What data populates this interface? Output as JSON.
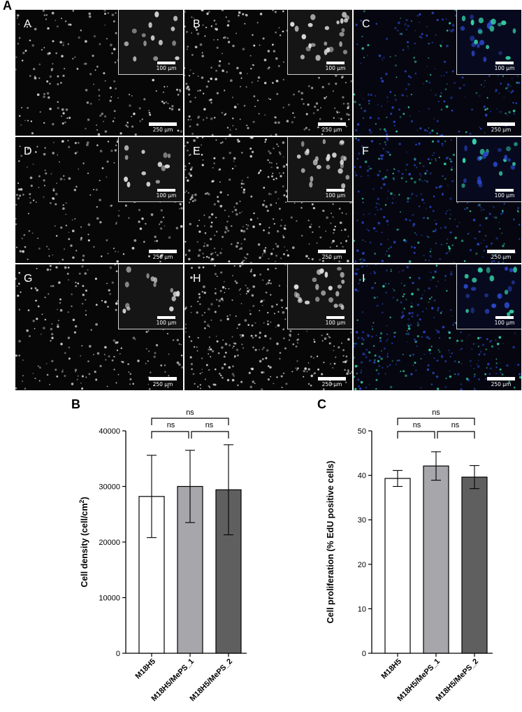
{
  "figure": {
    "panel_labels": {
      "a": "A",
      "b": "B",
      "c": "C"
    },
    "micrographs": [
      {
        "label": "A",
        "channel": "gray",
        "density": "low"
      },
      {
        "label": "B",
        "channel": "gray",
        "density": "medium"
      },
      {
        "label": "C",
        "channel": "merge",
        "density": "medium"
      },
      {
        "label": "D",
        "channel": "gray",
        "density": "low"
      },
      {
        "label": "E",
        "channel": "gray",
        "density": "high"
      },
      {
        "label": "F",
        "channel": "merge",
        "density": "high"
      },
      {
        "label": "G",
        "channel": "gray",
        "density": "low"
      },
      {
        "label": "H",
        "channel": "gray",
        "density": "high"
      },
      {
        "label": "I",
        "channel": "merge",
        "density": "high"
      }
    ],
    "scale_bar_inset": "100 µm",
    "scale_bar_main": "250 µm",
    "colors": {
      "gray_nuclei": "#dcdcdc",
      "blue_nuclei": "#2a46c8",
      "green_nuclei": "#34d0a8"
    }
  },
  "chart_data": [
    {
      "type": "bar",
      "panel": "B",
      "categories": [
        "M18H5",
        "M18H5/MePS_1",
        "M18H5/MePS_2"
      ],
      "values": [
        28200,
        30000,
        29400
      ],
      "error": [
        7400,
        6500,
        8100
      ],
      "ylabel": "Cell density (cell/cm²)",
      "ylabel_main": "Cell density (cell/cm",
      "ylabel_sup": "2",
      "ylabel_tail": ")",
      "ylim": [
        0,
        40000
      ],
      "yticks": [
        "0",
        "10000",
        "20000",
        "30000",
        "40000"
      ],
      "bar_colors": [
        "#ffffff",
        "#a6a6ab",
        "#5f5f5f"
      ],
      "significance": {
        "outer": "ns",
        "left": "ns",
        "right": "ns"
      }
    },
    {
      "type": "bar",
      "panel": "C",
      "categories": [
        "M18H5",
        "M18H5/MePS_1",
        "M18H5/MePS_2"
      ],
      "values": [
        39.3,
        42.1,
        39.6
      ],
      "error": [
        1.8,
        3.2,
        2.6
      ],
      "ylabel": "Cell proliferation (% EdU positive cells)",
      "ylim": [
        0,
        50
      ],
      "yticks": [
        "0",
        "10",
        "20",
        "30",
        "40",
        "50"
      ],
      "bar_colors": [
        "#ffffff",
        "#a6a6ab",
        "#5f5f5f"
      ],
      "significance": {
        "outer": "ns",
        "left": "ns",
        "right": "ns"
      }
    }
  ]
}
